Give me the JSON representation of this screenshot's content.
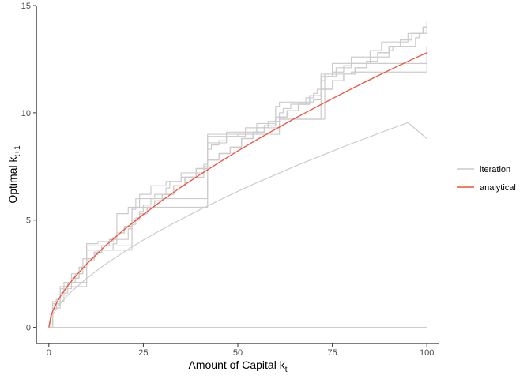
{
  "chart_data": {
    "type": "line",
    "xlabel": {
      "main": "Amount of Capital k",
      "sub": "t"
    },
    "ylabel": {
      "main": "Optimal k",
      "sub": "t+1"
    },
    "xlim": [
      -3.3,
      103.3
    ],
    "ylim": [
      -0.75,
      15
    ],
    "x_ticks": [
      0,
      25,
      50,
      75,
      100
    ],
    "y_ticks": [
      0,
      5,
      10,
      15
    ],
    "x_tick_labels": [
      "0",
      "25",
      "50",
      "75",
      "100"
    ],
    "y_tick_labels": [
      "0",
      "5",
      "10",
      "15"
    ],
    "grid": false,
    "legend_position": "right",
    "legend": [
      {
        "label": "iteration",
        "color": "#cccccc"
      },
      {
        "label": "analytical",
        "color": "#f0503a"
      }
    ],
    "colors": {
      "iteration": "#cccccc",
      "analytical": "#f0503a",
      "axis": "#000000"
    },
    "series": [
      {
        "name": "analytical",
        "kind": "analytical",
        "x": [
          0,
          0.5,
          1,
          2,
          3,
          5,
          7,
          10,
          15,
          20,
          25,
          30,
          35,
          40,
          45,
          50,
          55,
          60,
          65,
          70,
          75,
          80,
          85,
          90,
          95,
          100
        ],
        "y": [
          0,
          0.49,
          0.74,
          1.12,
          1.43,
          1.94,
          2.37,
          2.95,
          3.81,
          4.57,
          5.26,
          5.92,
          6.54,
          7.12,
          7.68,
          8.22,
          8.74,
          9.24,
          9.73,
          10.2,
          10.66,
          11.11,
          11.55,
          11.98,
          12.4,
          12.8
        ]
      },
      {
        "name": "iteration",
        "kind": "iteration-smooth",
        "x": [
          0,
          0.5,
          1,
          2,
          3,
          5,
          7,
          10,
          15,
          20,
          25,
          30,
          35,
          40,
          45,
          50,
          55,
          60,
          65,
          70,
          75,
          80,
          85,
          90,
          95,
          100
        ],
        "y": [
          0,
          0.38,
          0.57,
          0.86,
          1.1,
          1.5,
          1.83,
          2.28,
          2.95,
          3.53,
          4.07,
          4.57,
          5.04,
          5.49,
          5.92,
          6.34,
          6.74,
          7.12,
          7.5,
          7.86,
          8.21,
          8.56,
          8.89,
          9.22,
          9.54,
          8.8
        ]
      },
      {
        "name": "iteration",
        "kind": "iteration-step",
        "x": [
          0,
          0.5,
          1,
          2,
          3,
          4,
          5,
          6,
          8,
          10,
          12,
          14,
          16,
          18,
          20,
          22,
          24,
          26,
          28,
          30,
          33,
          36,
          39,
          42,
          45,
          48,
          51,
          54,
          57,
          60,
          63,
          66,
          69,
          72,
          75,
          78,
          81,
          84,
          87,
          90,
          93,
          96,
          99,
          100
        ],
        "y": [
          0,
          0.6,
          0.9,
          1.3,
          1.6,
          1.9,
          2.1,
          2.3,
          2.8,
          3.2,
          3.5,
          3.8,
          4.1,
          4.4,
          4.7,
          5.0,
          5.3,
          5.6,
          5.9,
          6.2,
          6.6,
          7.0,
          7.4,
          7.8,
          8.1,
          8.4,
          8.8,
          9.1,
          9.4,
          9.8,
          10.1,
          10.4,
          10.8,
          11.1,
          11.5,
          11.8,
          12.1,
          12.4,
          12.8,
          13.1,
          13.4,
          13.7,
          14.0,
          14.3
        ]
      },
      {
        "name": "iteration",
        "kind": "iteration-step",
        "x": [
          0,
          0.5,
          1,
          2,
          3,
          4,
          5,
          6,
          8,
          10,
          12,
          14,
          16,
          18,
          20,
          22,
          24,
          26,
          28,
          30,
          33,
          36,
          39,
          42,
          45,
          48,
          51,
          54,
          57,
          60,
          63,
          66,
          69,
          72,
          75,
          78,
          81,
          84,
          87,
          90,
          93,
          96,
          99,
          100
        ],
        "y": [
          0,
          0.6,
          0.9,
          1.3,
          1.6,
          1.9,
          2.1,
          2.3,
          2.8,
          3.2,
          3.5,
          3.8,
          4.1,
          4.4,
          4.7,
          5.0,
          5.3,
          5.6,
          5.9,
          6.2,
          6.6,
          7.0,
          7.4,
          7.8,
          8.1,
          8.4,
          8.8,
          9.1,
          9.4,
          9.8,
          10.1,
          10.4,
          10.8,
          11.1,
          11.5,
          11.8,
          12.1,
          12.4,
          12.8,
          13.1,
          13.4,
          13.7,
          14.0,
          14.1
        ]
      },
      {
        "name": "iteration",
        "kind": "iteration-step",
        "x": [
          0,
          0.5,
          1,
          2,
          3,
          4,
          5,
          6,
          8,
          10,
          12,
          14,
          16,
          18,
          20,
          22,
          24,
          26,
          28,
          30,
          33,
          36,
          39,
          42,
          45,
          48,
          51,
          54,
          57,
          60,
          63,
          66,
          69,
          72,
          75,
          78,
          81,
          84,
          87,
          90,
          93,
          96,
          99,
          100
        ],
        "y": [
          0,
          0.6,
          0.9,
          1.3,
          1.6,
          1.9,
          2.1,
          2.3,
          2.8,
          3.2,
          3.5,
          3.8,
          4.1,
          4.4,
          4.7,
          5.0,
          5.3,
          5.6,
          5.9,
          6.2,
          6.6,
          7.0,
          7.4,
          7.8,
          8.1,
          8.4,
          8.8,
          9.1,
          9.4,
          9.8,
          10.1,
          10.4,
          10.8,
          11.1,
          11.5,
          11.8,
          12.1,
          12.4,
          12.8,
          13.1,
          13.4,
          13.7,
          14.0,
          13.9
        ]
      },
      {
        "name": "iteration",
        "kind": "iteration-step",
        "x": [
          0,
          1,
          3,
          5,
          7,
          9,
          10,
          12,
          13,
          17,
          18,
          21,
          22,
          23,
          24,
          25,
          27,
          28,
          31,
          32,
          35,
          41,
          42,
          43,
          45,
          47,
          50,
          55,
          58,
          61,
          62,
          64,
          68,
          70,
          71,
          72,
          73,
          75,
          78,
          80,
          85,
          90,
          91,
          97,
          98,
          100
        ],
        "y": [
          0,
          0.9,
          1.6,
          2.1,
          2.5,
          2.9,
          3.1,
          3.4,
          3.6,
          3.9,
          4.1,
          4.6,
          4.8,
          5.1,
          5.4,
          5.7,
          6.0,
          6.2,
          6.5,
          6.8,
          7.2,
          7.6,
          8.3,
          8.5,
          8.7,
          8.9,
          9.0,
          9.3,
          9.6,
          10.0,
          10.2,
          10.4,
          10.7,
          10.9,
          11.1,
          11.5,
          11.7,
          11.9,
          12.2,
          12.3,
          12.6,
          12.9,
          13.1,
          13.5,
          13.7,
          13.9
        ]
      },
      {
        "name": "iteration",
        "kind": "iteration-step",
        "x": [
          0,
          1,
          3,
          6,
          9,
          10,
          13,
          17,
          18,
          21,
          24,
          27,
          31,
          35,
          41,
          42,
          47,
          55,
          60,
          61,
          70,
          72,
          76,
          80,
          85,
          88,
          95,
          100
        ],
        "y": [
          0,
          1.0,
          1.8,
          2.5,
          3.2,
          3.9,
          4.0,
          4.2,
          5.3,
          5.6,
          6.2,
          6.6,
          6.8,
          7.0,
          7.5,
          8.6,
          9.1,
          9.5,
          10.3,
          10.5,
          10.6,
          11.7,
          12.1,
          12.6,
          12.9,
          13.3,
          13.7,
          13.8
        ]
      },
      {
        "name": "iteration",
        "kind": "iteration-step",
        "x": [
          0,
          1,
          4,
          10,
          17,
          21,
          22,
          31,
          41,
          42,
          58,
          61,
          72,
          73,
          75,
          80,
          88,
          99,
          100
        ],
        "y": [
          0,
          1.2,
          2.1,
          3.8,
          3.8,
          3.8,
          5.6,
          5.6,
          5.6,
          9.0,
          9.0,
          9.7,
          9.7,
          11.8,
          12.3,
          12.3,
          12.3,
          12.3,
          13.1
        ]
      },
      {
        "name": "iteration",
        "kind": "iteration-step",
        "x": [
          0,
          1,
          3,
          10,
          22,
          23,
          42,
          52,
          61,
          72,
          80,
          100
        ],
        "y": [
          0,
          1.1,
          1.9,
          3.6,
          5.5,
          6.0,
          8.9,
          9.3,
          9.7,
          11.8,
          11.9,
          13.1
        ]
      },
      {
        "name": "iteration",
        "kind": "iteration-zero",
        "x": [
          0,
          100
        ],
        "y": [
          0,
          0
        ]
      }
    ]
  }
}
